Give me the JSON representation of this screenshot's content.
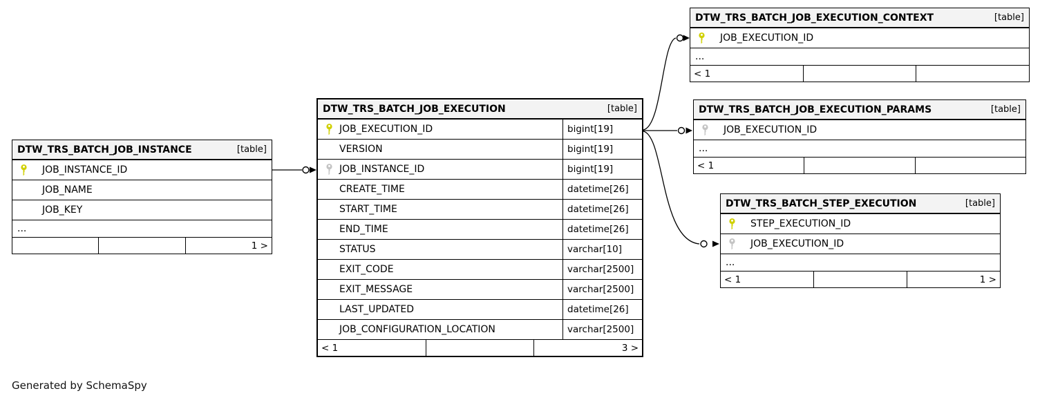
{
  "diagram": {
    "generated_by": "Generated by SchemaSpy"
  },
  "colors": {
    "primary_key": "#d0d000",
    "foreign_key": "#c4c4c4",
    "header_bg": "#f3f3f3",
    "border": "#000000"
  },
  "tables": [
    {
      "title": "DTW_TRS_BATCH_JOB_INSTANCE",
      "tag": "[table]",
      "rows": [
        {
          "name": "JOB_INSTANCE_ID",
          "key": "primary",
          "type": ""
        },
        {
          "name": "JOB_NAME",
          "key": "none",
          "type": ""
        },
        {
          "name": "JOB_KEY",
          "key": "none",
          "type": ""
        },
        {
          "name": "...",
          "key": "ellipsis",
          "type": ""
        }
      ],
      "footer": {
        "left": "",
        "center": "",
        "right": "1 >"
      }
    },
    {
      "title": "DTW_TRS_BATCH_JOB_EXECUTION",
      "tag": "[table]",
      "rows": [
        {
          "name": "JOB_EXECUTION_ID",
          "key": "primary",
          "type": "bigint[19]"
        },
        {
          "name": "VERSION",
          "key": "none",
          "type": "bigint[19]"
        },
        {
          "name": "JOB_INSTANCE_ID",
          "key": "foreign",
          "type": "bigint[19]"
        },
        {
          "name": "CREATE_TIME",
          "key": "none",
          "type": "datetime[26]"
        },
        {
          "name": "START_TIME",
          "key": "none",
          "type": "datetime[26]"
        },
        {
          "name": "END_TIME",
          "key": "none",
          "type": "datetime[26]"
        },
        {
          "name": "STATUS",
          "key": "none",
          "type": "varchar[10]"
        },
        {
          "name": "EXIT_CODE",
          "key": "none",
          "type": "varchar[2500]"
        },
        {
          "name": "EXIT_MESSAGE",
          "key": "none",
          "type": "varchar[2500]"
        },
        {
          "name": "LAST_UPDATED",
          "key": "none",
          "type": "datetime[26]"
        },
        {
          "name": "JOB_CONFIGURATION_LOCATION",
          "key": "none",
          "type": "varchar[2500]"
        }
      ],
      "footer": {
        "left": "< 1",
        "center": "",
        "right": "3 >"
      }
    },
    {
      "title": "DTW_TRS_BATCH_JOB_EXECUTION_CONTEXT",
      "tag": "[table]",
      "rows": [
        {
          "name": "JOB_EXECUTION_ID",
          "key": "primary",
          "type": ""
        },
        {
          "name": "...",
          "key": "ellipsis",
          "type": ""
        }
      ],
      "footer": {
        "left": "< 1",
        "center": "",
        "right": ""
      }
    },
    {
      "title": "DTW_TRS_BATCH_JOB_EXECUTION_PARAMS",
      "tag": "[table]",
      "rows": [
        {
          "name": "JOB_EXECUTION_ID",
          "key": "foreign",
          "type": ""
        },
        {
          "name": "...",
          "key": "ellipsis",
          "type": ""
        }
      ],
      "footer": {
        "left": "< 1",
        "center": "",
        "right": ""
      }
    },
    {
      "title": "DTW_TRS_BATCH_STEP_EXECUTION",
      "tag": "[table]",
      "rows": [
        {
          "name": "STEP_EXECUTION_ID",
          "key": "primary",
          "type": ""
        },
        {
          "name": "JOB_EXECUTION_ID",
          "key": "foreign",
          "type": ""
        },
        {
          "name": "...",
          "key": "ellipsis",
          "type": ""
        }
      ],
      "footer": {
        "left": "< 1",
        "center": "",
        "right": "1 >"
      }
    }
  ]
}
